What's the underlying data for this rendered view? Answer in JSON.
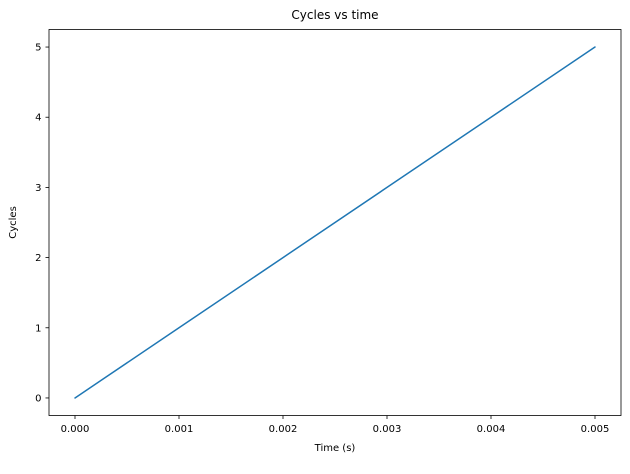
{
  "chart_data": {
    "type": "line",
    "title": "Cycles vs time",
    "xlabel": "Time (s)",
    "ylabel": "Cycles",
    "x": [
      0.0,
      0.001,
      0.002,
      0.003,
      0.004,
      0.005
    ],
    "y": [
      0,
      1,
      2,
      3,
      4,
      5
    ],
    "xlim": [
      -0.00025,
      0.00525
    ],
    "ylim": [
      -0.25,
      5.25
    ],
    "xticks": {
      "values": [
        0.0,
        0.001,
        0.002,
        0.003,
        0.004,
        0.005
      ],
      "labels": [
        "0.000",
        "0.001",
        "0.002",
        "0.003",
        "0.004",
        "0.005"
      ]
    },
    "yticks": {
      "values": [
        0,
        1,
        2,
        3,
        4,
        5
      ],
      "labels": [
        "0",
        "1",
        "2",
        "3",
        "4",
        "5"
      ]
    },
    "line_color": "#1f77b4",
    "line_width": 1.5,
    "axes_color": "#000000",
    "background": "#ffffff",
    "grid": false,
    "legend": null
  }
}
